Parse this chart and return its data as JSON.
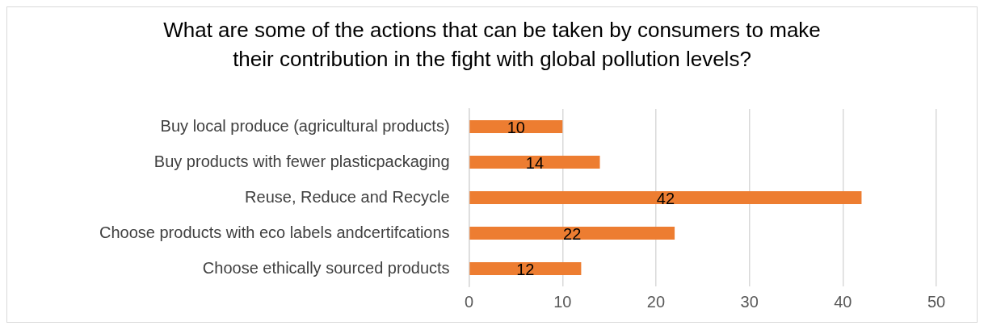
{
  "chart_data": {
    "type": "bar",
    "orientation": "horizontal",
    "title": "What are some of the actions that can be taken by consumers to make their contribution in the fight with global pollution levels?",
    "categories": [
      "Buy local produce (agricultural products)",
      "Buy products with fewer plasticpackaging",
      "Reuse, Reduce and Recycle",
      "Choose products with eco labels andcertifcations",
      "Choose ethically sourced products"
    ],
    "values": [
      10,
      14,
      42,
      22,
      12
    ],
    "color": "#ed7d31",
    "xlim": [
      0,
      50
    ],
    "xticks": [
      0,
      10,
      20,
      30,
      40,
      50
    ],
    "grid": "x",
    "data_labels": true,
    "legend": false
  }
}
